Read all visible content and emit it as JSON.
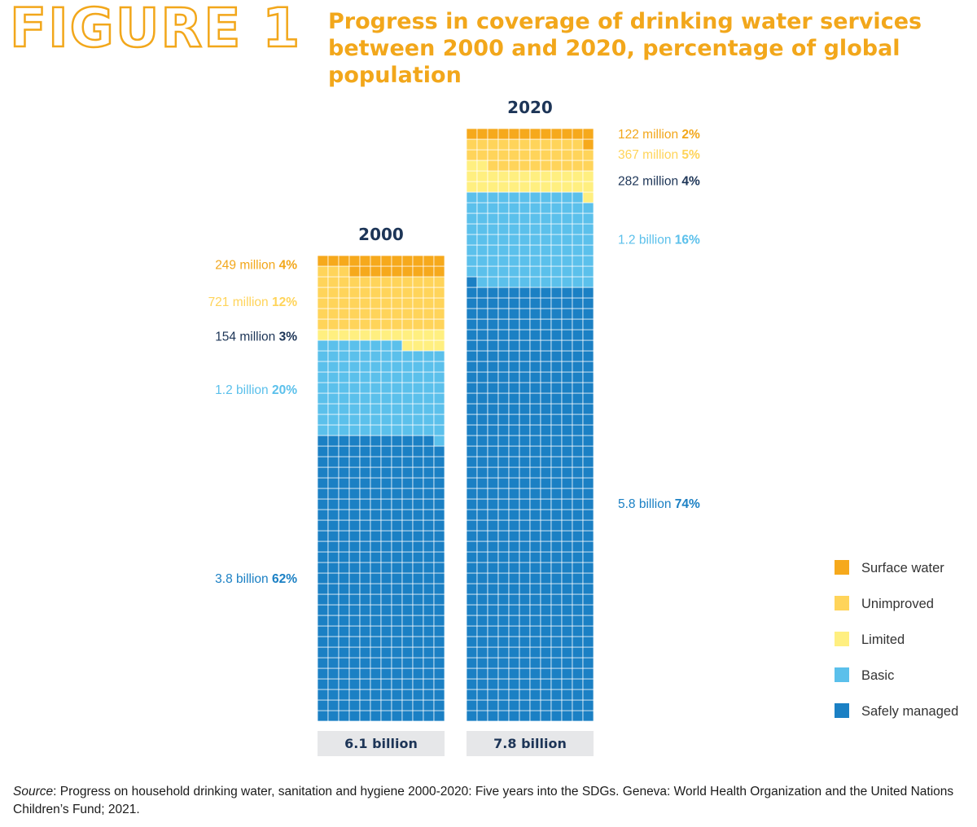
{
  "figure_label": "FIGURE 1",
  "source": {
    "label": "Source",
    "text": ": Progress on household drinking water, sanitation and hygiene 2000-2020: Five years into the SDGs. Geneva: World Health Organization and the United Nations Children’s Fund; 2021."
  },
  "colors": {
    "title": "#F2A71B",
    "year_label": "#1D3557",
    "total_box_bg": "#E6E7E9",
    "grid_line": "#ffffff"
  },
  "chart_data": {
    "type": "bar",
    "style": "stacked waffle (100 units per year, 5 columns... rendered as 12x50 cell grid)",
    "title": "Progress in coverage of drinking water services between 2000 and 2020, percentage of global population",
    "categories": [
      "2000",
      "2020"
    ],
    "totals": [
      "6.1 billion",
      "7.8 billion"
    ],
    "legend_position": "right",
    "series": [
      {
        "name": "Safely managed",
        "color": "#1B80C4",
        "label_color": "#1B80C4",
        "values": [
          62,
          74
        ],
        "counts": [
          "3.8 billion",
          "5.8 billion"
        ],
        "pct_labels": [
          "62%",
          "74%"
        ]
      },
      {
        "name": "Basic",
        "color": "#5BC0EB",
        "label_color": "#5BC0EB",
        "values": [
          20,
          16
        ],
        "counts": [
          "1.2 billion",
          "1.2 billion"
        ],
        "pct_labels": [
          "20%",
          "16%"
        ]
      },
      {
        "name": "Limited",
        "color": "#FFEF80",
        "label_color": "#1D3557",
        "values": [
          3,
          4
        ],
        "counts": [
          "154 million",
          "282 million"
        ],
        "pct_labels": [
          "3%",
          "4%"
        ]
      },
      {
        "name": "Unimproved",
        "color": "#FFD45A",
        "label_color": "#FFD45A",
        "values": [
          12,
          5
        ],
        "counts": [
          "721 million",
          "367 million"
        ],
        "pct_labels": [
          "12%",
          "5%"
        ]
      },
      {
        "name": "Surface water",
        "color": "#F6A91C",
        "label_color": "#F2A71B",
        "values": [
          4,
          2
        ],
        "counts": [
          "249 million",
          "122 million"
        ],
        "pct_labels": [
          "4%",
          "2%"
        ]
      }
    ],
    "legend_order": [
      "Surface water",
      "Unimproved",
      "Limited",
      "Basic",
      "Safely managed"
    ]
  }
}
